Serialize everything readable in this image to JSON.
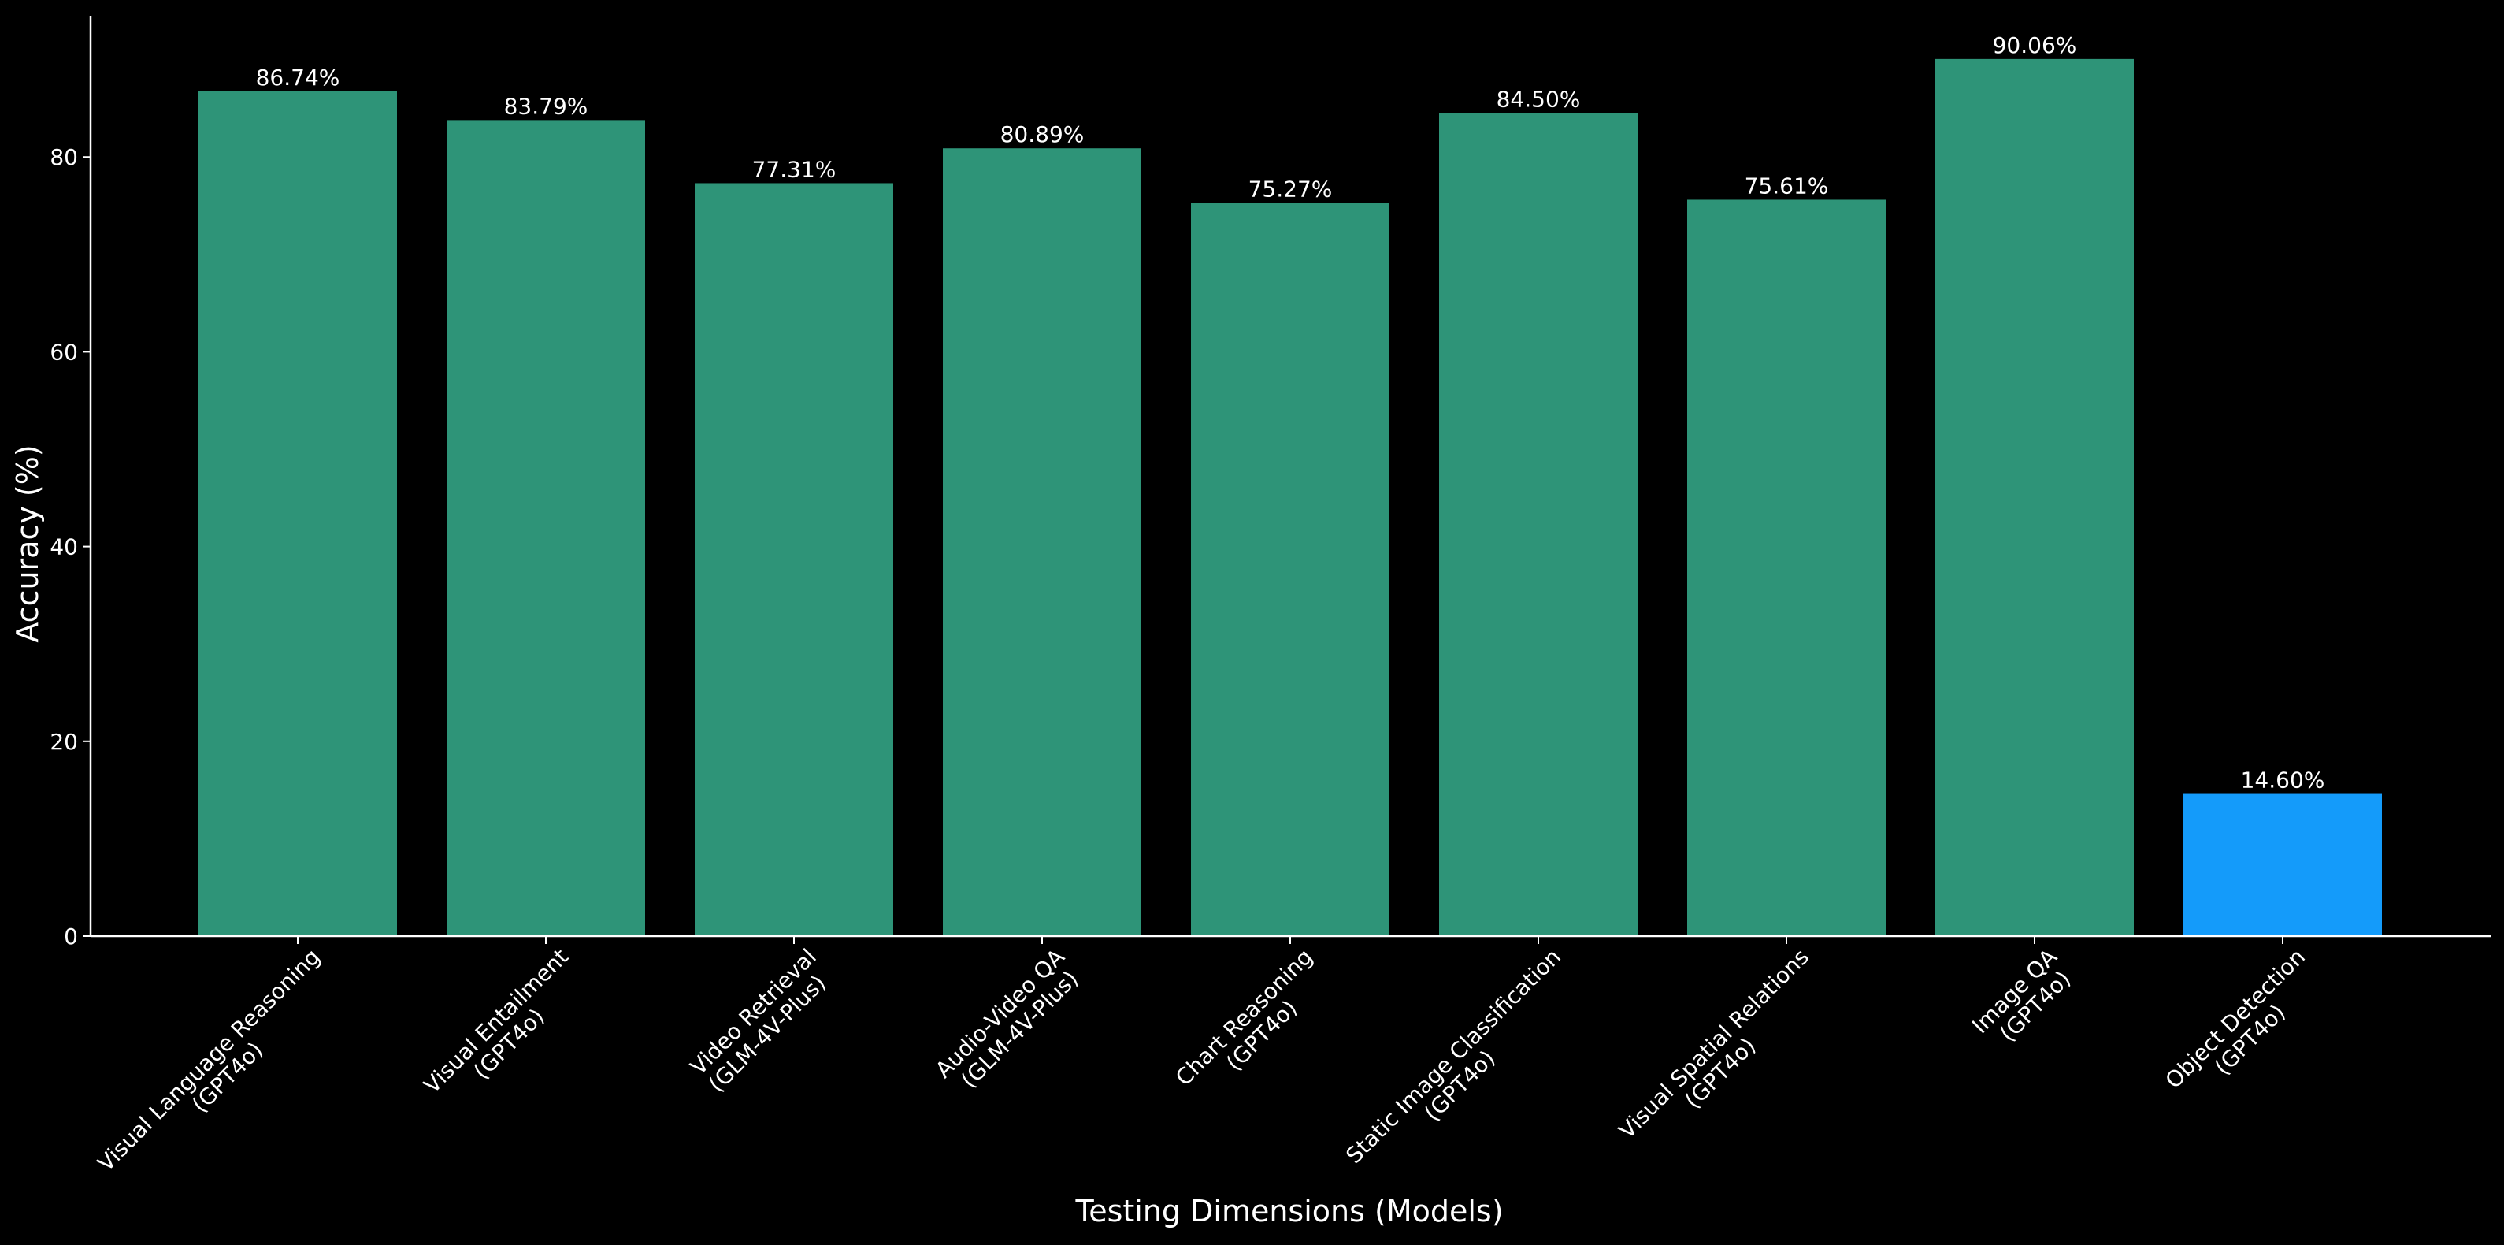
{
  "chart_data": {
    "type": "bar",
    "title": "",
    "xlabel": "Testing Dimensions (Models)",
    "ylabel": "Accuracy (%)",
    "ylim": [
      0,
      94.5
    ],
    "yticks": [
      0,
      20,
      40,
      60,
      80
    ],
    "grid": false,
    "legend": "none",
    "categories": [
      [
        "Visual Language Reasoning",
        "(GPT4o)"
      ],
      [
        "Visual Entailment",
        "(GPT4o)"
      ],
      [
        "Video Retrieval",
        "(GLM-4V-Plus)"
      ],
      [
        "Audio-Video QA",
        "(GLM-4V-Plus)"
      ],
      [
        "Chart Reasoning",
        "(GPT4o)"
      ],
      [
        "Static Image Classification",
        "(GPT4o)"
      ],
      [
        "Visual Spatial Relations",
        "(GPT4o)"
      ],
      [
        "Image QA",
        "(GPT4o)"
      ],
      [
        "Object Detection",
        "(GPT4o)"
      ]
    ],
    "values": [
      86.74,
      83.79,
      77.31,
      80.89,
      75.27,
      84.5,
      75.61,
      90.06,
      14.6
    ],
    "value_labels": [
      "86.74%",
      "83.79%",
      "77.31%",
      "80.89%",
      "75.27%",
      "84.50%",
      "75.61%",
      "90.06%",
      "14.60%"
    ],
    "colors": [
      "#2e9478",
      "#2e9478",
      "#2e9478",
      "#2e9478",
      "#2e9478",
      "#2e9478",
      "#2e9478",
      "#2e9478",
      "#149bfa"
    ],
    "background": "#000000",
    "axis_color": "#ffffff",
    "text_color": "#ffffff"
  }
}
